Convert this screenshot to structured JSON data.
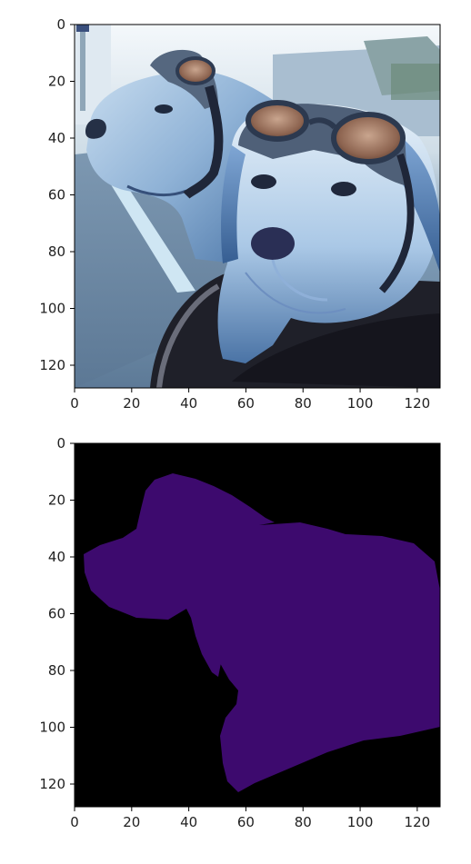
{
  "figure": {
    "panels": [
      {
        "name": "rgb-image",
        "image_description": "two dogs wearing aviator goggles riding in a car",
        "xticks": [
          "0",
          "20",
          "40",
          "60",
          "80",
          "100",
          "120"
        ],
        "yticks": [
          "0",
          "20",
          "40",
          "60",
          "80",
          "100",
          "120"
        ],
        "xlim": [
          0,
          128
        ],
        "ylim": [
          128,
          0
        ]
      },
      {
        "name": "segmentation-mask",
        "image_description": "binary mask of the two dogs",
        "colors": {
          "background": "#000000",
          "foreground": "#3d0a6e"
        },
        "xticks": [
          "0",
          "20",
          "40",
          "60",
          "80",
          "100",
          "120"
        ],
        "yticks": [
          "0",
          "20",
          "40",
          "60",
          "80",
          "100",
          "120"
        ],
        "xlim": [
          0,
          128
        ],
        "ylim": [
          128,
          0
        ]
      }
    ]
  }
}
